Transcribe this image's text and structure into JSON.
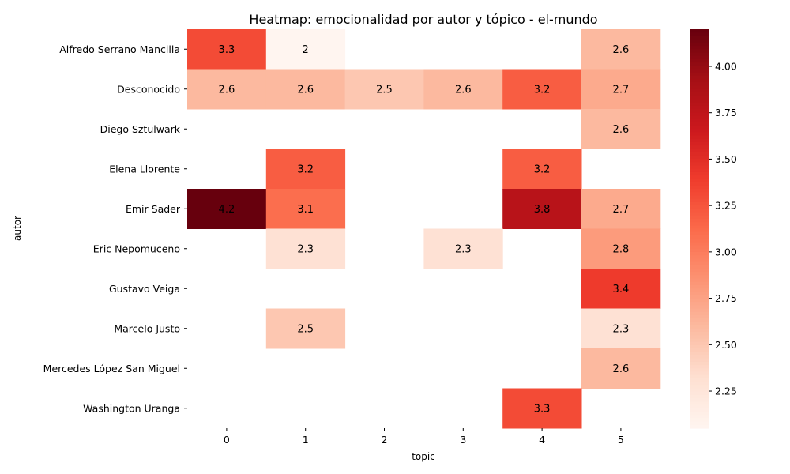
{
  "chart_data": {
    "type": "heatmap",
    "title": "Heatmap: emocionalidad por autor y tópico - el-mundo",
    "xlabel": "topic",
    "ylabel": "autor",
    "x_categories": [
      "0",
      "1",
      "2",
      "3",
      "4",
      "5"
    ],
    "y_categories": [
      "Alfredo Serrano Mancilla",
      "Desconocido",
      "Diego Sztulwark",
      "Elena Llorente",
      "Emir Sader",
      "Eric Nepomuceno",
      "Gustavo Veiga",
      "Marcelo Justo",
      "Mercedes López San Miguel",
      "Washington Uranga"
    ],
    "values": [
      [
        3.3,
        2,
        null,
        null,
        null,
        2.6
      ],
      [
        2.6,
        2.6,
        2.5,
        2.6,
        3.2,
        2.7
      ],
      [
        null,
        null,
        null,
        null,
        null,
        2.6
      ],
      [
        null,
        3.2,
        null,
        null,
        3.2,
        null
      ],
      [
        4.2,
        3.1,
        null,
        null,
        3.8,
        2.7
      ],
      [
        null,
        2.3,
        null,
        2.3,
        null,
        2.8
      ],
      [
        null,
        null,
        null,
        null,
        null,
        3.4
      ],
      [
        null,
        2.5,
        null,
        null,
        null,
        2.3
      ],
      [
        null,
        null,
        null,
        null,
        null,
        2.6
      ],
      [
        null,
        null,
        null,
        null,
        3.3,
        null
      ]
    ],
    "colormap": "Reds",
    "color_range": [
      2.05,
      4.2
    ],
    "colorbar_ticks": [
      "2.25",
      "2.50",
      "2.75",
      "3.00",
      "3.25",
      "3.50",
      "3.75",
      "4.00"
    ],
    "colorbar_tick_values": [
      2.25,
      2.5,
      2.75,
      3.0,
      3.25,
      3.5,
      3.75,
      4.0
    ]
  }
}
